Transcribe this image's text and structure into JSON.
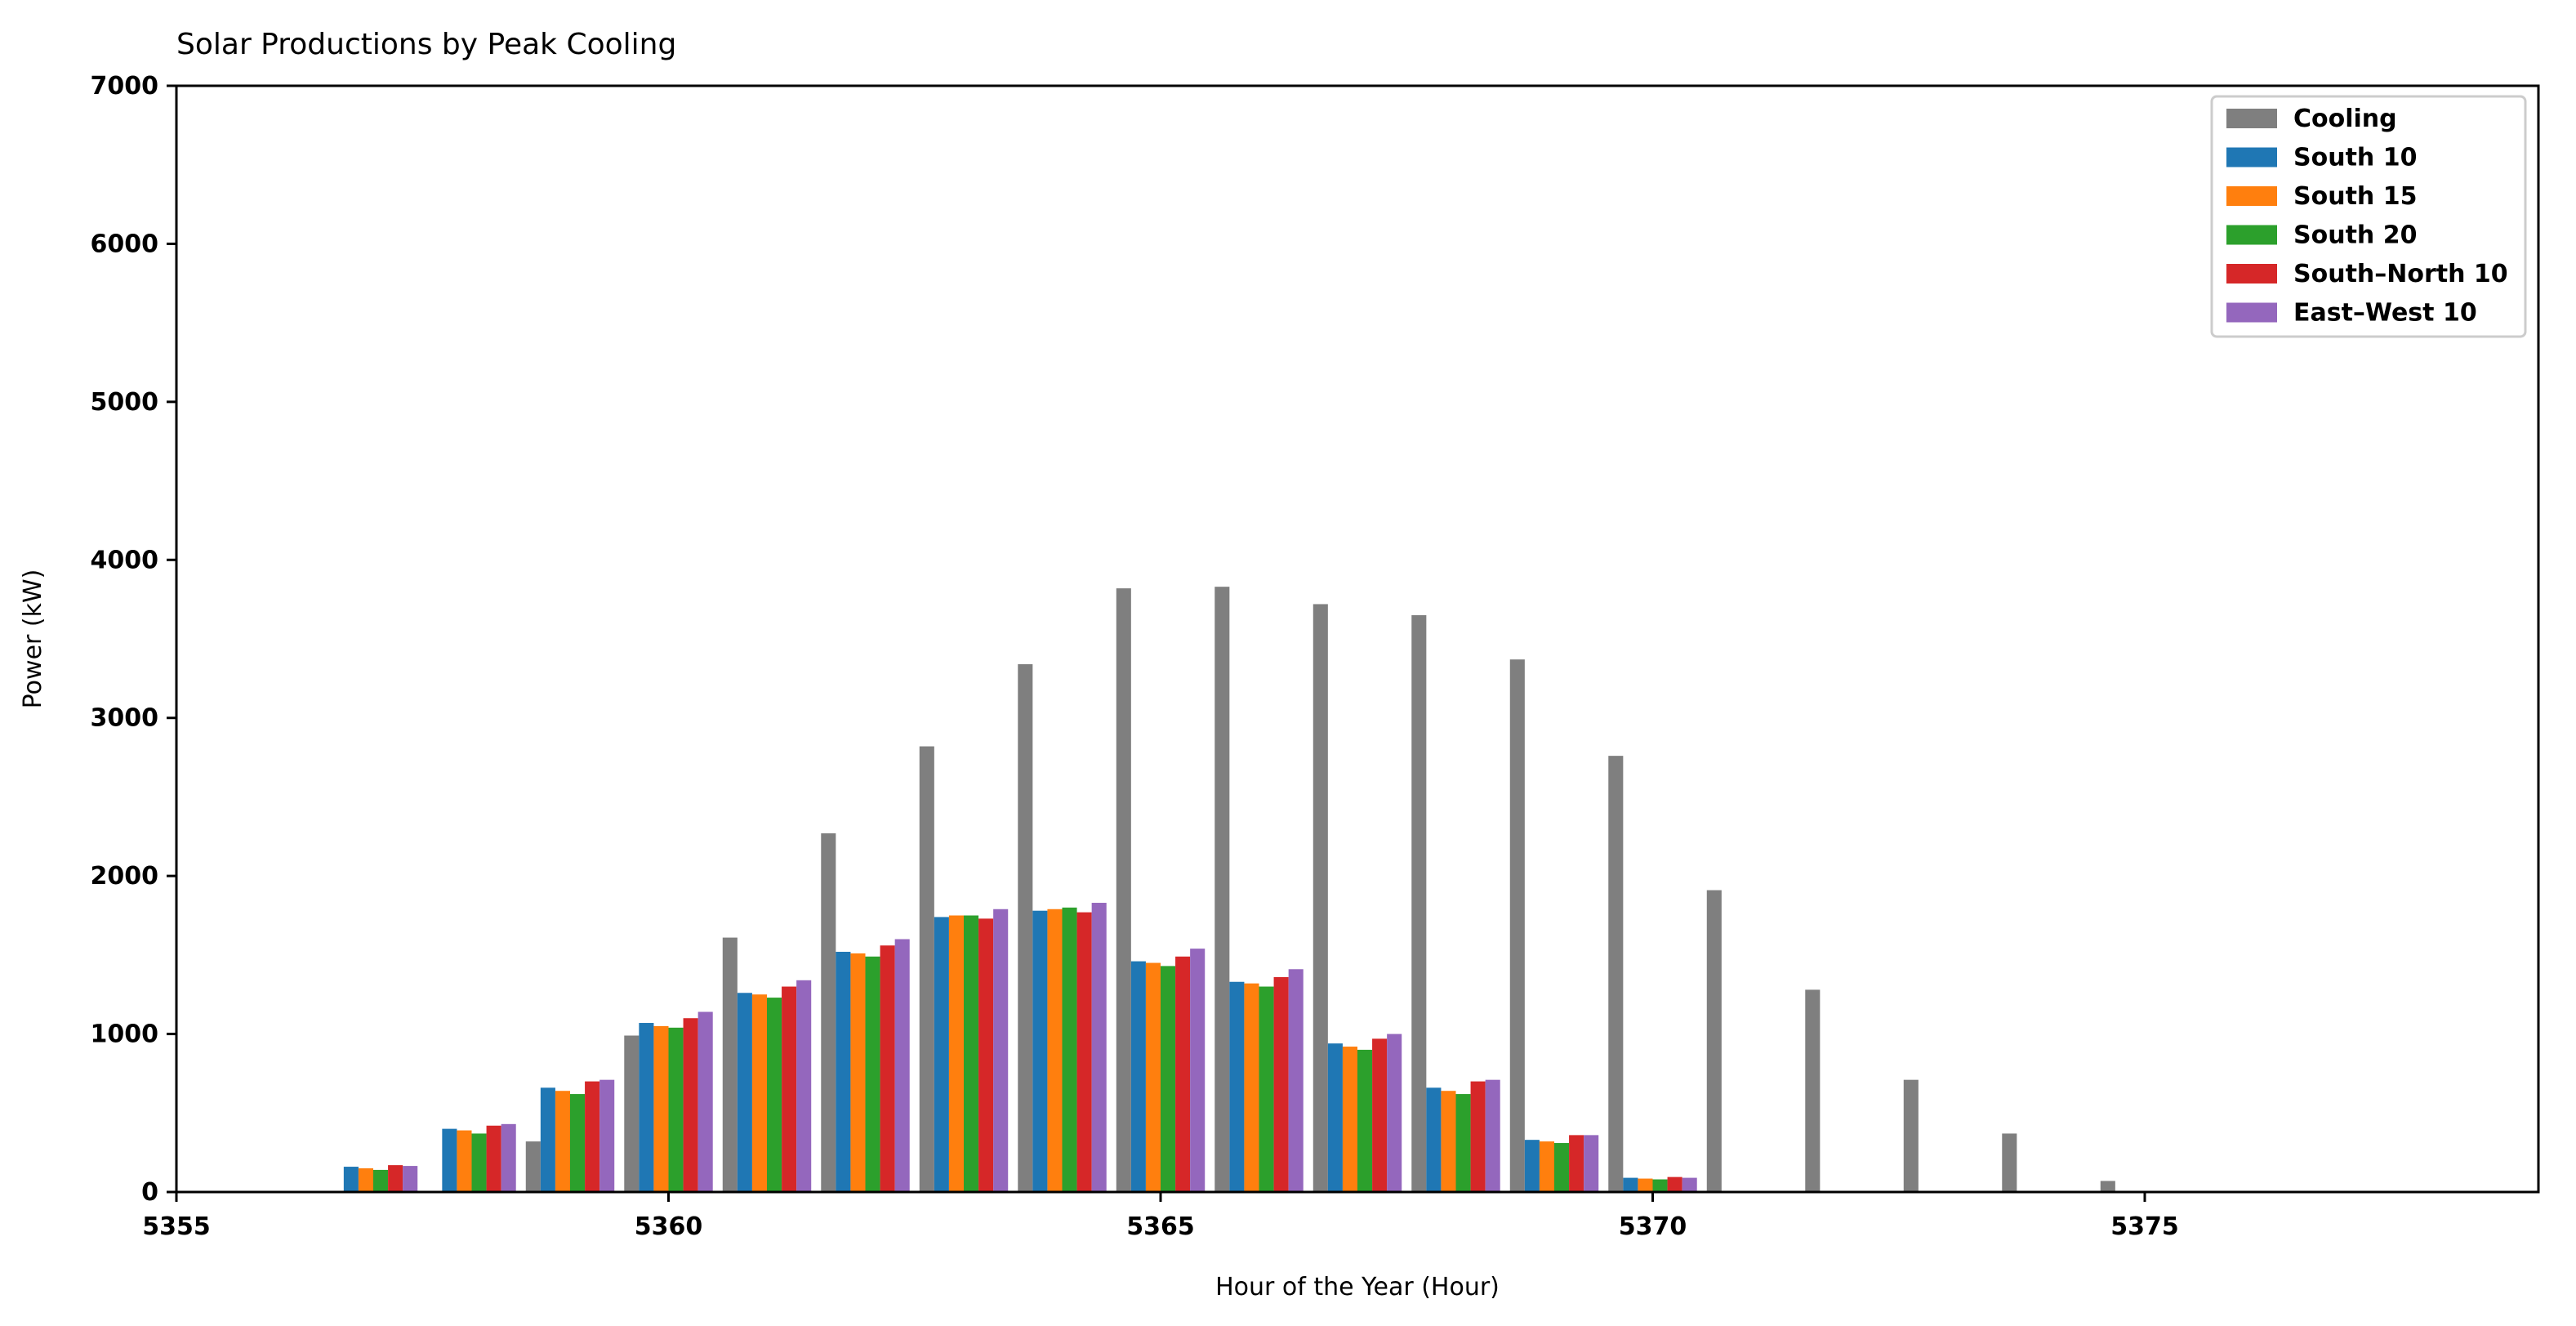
{
  "chart_data": {
    "type": "bar",
    "title": "Solar Productions by Peak Cooling",
    "xlabel": "Hour of the Year (Hour)",
    "ylabel": "Power (kW)",
    "xlim": [
      5355,
      5379
    ],
    "ylim": [
      0,
      7000
    ],
    "xticks": [
      5355,
      5360,
      5365,
      5370,
      5375
    ],
    "yticks": [
      0,
      1000,
      2000,
      3000,
      4000,
      5000,
      6000,
      7000
    ],
    "grid": false,
    "legend_position": "top-right",
    "bar_group_width": 0.9,
    "x": [
      5357,
      5358,
      5359,
      5360,
      5361,
      5362,
      5363,
      5364,
      5365,
      5366,
      5367,
      5368,
      5369,
      5370,
      5371,
      5372,
      5373,
      5374,
      5375
    ],
    "series": [
      {
        "name": "Cooling",
        "color": "#7f7f7f",
        "values": [
          0,
          0,
          320,
          990,
          1610,
          2270,
          2820,
          3340,
          3820,
          3830,
          3720,
          3650,
          3370,
          2760,
          1910,
          1280,
          710,
          370,
          70
        ]
      },
      {
        "name": "South 10",
        "color": "#1f77b4",
        "values": [
          160,
          400,
          660,
          1070,
          1260,
          1520,
          1740,
          1780,
          1460,
          1330,
          940,
          660,
          330,
          90,
          0,
          0,
          0,
          0,
          0
        ]
      },
      {
        "name": "South 15",
        "color": "#ff7f0e",
        "values": [
          150,
          390,
          640,
          1050,
          1250,
          1510,
          1750,
          1790,
          1450,
          1320,
          920,
          640,
          320,
          85,
          0,
          0,
          0,
          0,
          0
        ]
      },
      {
        "name": "South 20",
        "color": "#2ca02c",
        "values": [
          140,
          370,
          620,
          1040,
          1230,
          1490,
          1750,
          1800,
          1430,
          1300,
          900,
          620,
          310,
          80,
          0,
          0,
          0,
          0,
          0
        ]
      },
      {
        "name": "South–North 10",
        "color": "#d62728",
        "values": [
          170,
          420,
          700,
          1100,
          1300,
          1560,
          1730,
          1770,
          1490,
          1360,
          970,
          700,
          360,
          95,
          0,
          0,
          0,
          0,
          0
        ]
      },
      {
        "name": "East–West 10",
        "color": "#9467bd",
        "values": [
          165,
          430,
          710,
          1140,
          1340,
          1600,
          1790,
          1830,
          1540,
          1410,
          1000,
          710,
          360,
          90,
          0,
          0,
          0,
          0,
          0
        ]
      }
    ]
  }
}
